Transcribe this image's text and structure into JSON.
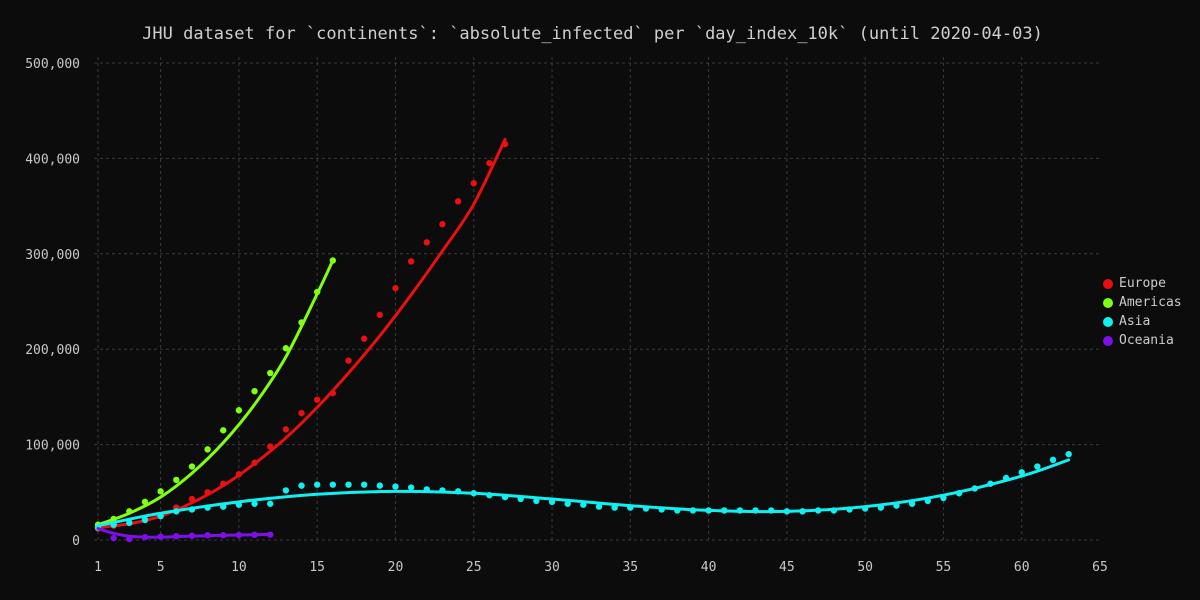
{
  "chart_data": {
    "type": "line",
    "title": "JHU dataset for `continents`: `absolute_infected` per `day_index_10k` (until 2020-04-03)",
    "xlabel": "",
    "ylabel": "",
    "xlim": [
      1,
      65
    ],
    "ylim": [
      0,
      500000
    ],
    "xticks": [
      1,
      5,
      10,
      15,
      20,
      25,
      30,
      35,
      40,
      45,
      50,
      55,
      60,
      65
    ],
    "xtick_labels": [
      "1",
      "5",
      "10",
      "15",
      "20",
      "25",
      "30",
      "35",
      "40",
      "45",
      "50",
      "55",
      "60",
      "65"
    ],
    "yticks": [
      0,
      100000,
      200000,
      300000,
      400000,
      500000
    ],
    "ytick_labels": [
      "0",
      "100,000",
      "200,000",
      "300,000",
      "400,000",
      "500,000"
    ],
    "grid": true,
    "legend_position": "right",
    "series": [
      {
        "name": "Europe",
        "color": "#e81010",
        "x": [
          1,
          2,
          3,
          4,
          5,
          6,
          7,
          8,
          9,
          10,
          11,
          12,
          13,
          14,
          15,
          16,
          17,
          18,
          19,
          20,
          21,
          22,
          23,
          24,
          25,
          26,
          27
        ],
        "values": [
          12000,
          15000,
          19000,
          22000,
          25000,
          34000,
          43000,
          50000,
          59000,
          69000,
          81000,
          98000,
          116000,
          133000,
          147000,
          154000,
          188000,
          211000,
          236000,
          264000,
          292000,
          312000,
          331000,
          355000,
          374000,
          395000,
          415000
        ],
        "fit": [
          [
            1,
            13000
          ],
          [
            3,
            17000
          ],
          [
            5,
            25000
          ],
          [
            7,
            39000
          ],
          [
            9,
            57000
          ],
          [
            11,
            80000
          ],
          [
            13,
            107000
          ],
          [
            15,
            139000
          ],
          [
            17,
            175000
          ],
          [
            19,
            214000
          ],
          [
            21,
            257000
          ],
          [
            23,
            303000
          ],
          [
            25,
            352000
          ],
          [
            27,
            420000
          ]
        ]
      },
      {
        "name": "Americas",
        "color": "#80ff10",
        "x": [
          1,
          2,
          3,
          4,
          5,
          6,
          7,
          8,
          9,
          10,
          11,
          12,
          13,
          14,
          15,
          16
        ],
        "values": [
          16000,
          22000,
          30000,
          40000,
          51000,
          63000,
          77000,
          95000,
          115000,
          136000,
          156000,
          175000,
          201000,
          228000,
          260000,
          293000
        ],
        "fit": [
          [
            1,
            16000
          ],
          [
            3,
            28000
          ],
          [
            5,
            45000
          ],
          [
            7,
            70000
          ],
          [
            9,
            102000
          ],
          [
            11,
            142000
          ],
          [
            13,
            192000
          ],
          [
            15,
            258000
          ],
          [
            16,
            293000
          ]
        ]
      },
      {
        "name": "Asia",
        "color": "#10f0f0",
        "x": [
          1,
          2,
          3,
          4,
          5,
          6,
          7,
          8,
          9,
          10,
          11,
          12,
          13,
          14,
          15,
          16,
          17,
          18,
          19,
          20,
          21,
          22,
          23,
          24,
          25,
          26,
          27,
          28,
          29,
          30,
          31,
          32,
          33,
          34,
          35,
          36,
          37,
          38,
          39,
          40,
          41,
          42,
          43,
          44,
          45,
          46,
          47,
          48,
          49,
          50,
          51,
          52,
          53,
          54,
          55,
          56,
          57,
          58,
          59,
          60,
          61,
          62,
          63
        ],
        "values": [
          13000,
          16000,
          18000,
          21000,
          25000,
          30000,
          32000,
          34000,
          35000,
          37000,
          38000,
          38000,
          52000,
          57000,
          58000,
          58000,
          58000,
          58000,
          57000,
          56000,
          55000,
          53000,
          52000,
          51000,
          49000,
          47000,
          45000,
          43000,
          41000,
          40000,
          38000,
          37000,
          35000,
          34000,
          34000,
          33000,
          32000,
          31000,
          31000,
          31000,
          31000,
          31000,
          31000,
          31000,
          30000,
          30000,
          31000,
          31000,
          32000,
          33000,
          34000,
          36000,
          38000,
          41000,
          44000,
          49000,
          54000,
          59000,
          65000,
          71000,
          77000,
          84000,
          90000
        ],
        "fit": [
          [
            1,
            15000
          ],
          [
            5,
            28000
          ],
          [
            10,
            40000
          ],
          [
            15,
            48000
          ],
          [
            20,
            51000
          ],
          [
            25,
            49000
          ],
          [
            30,
            43000
          ],
          [
            35,
            36000
          ],
          [
            40,
            31000
          ],
          [
            45,
            30000
          ],
          [
            50,
            35000
          ],
          [
            55,
            47000
          ],
          [
            60,
            67000
          ],
          [
            63,
            84000
          ]
        ]
      },
      {
        "name": "Oceania",
        "color": "#7c10e8",
        "x": [
          2,
          3,
          4,
          5,
          6,
          7,
          8,
          9,
          10,
          11,
          12
        ],
        "values": [
          2000,
          1000,
          3000,
          3500,
          4000,
          4500,
          5000,
          5000,
          5200,
          5400,
          5600
        ],
        "fit": [
          [
            1,
            12000
          ],
          [
            2,
            7000
          ],
          [
            3,
            4000
          ],
          [
            4,
            3000
          ],
          [
            5,
            3000
          ],
          [
            6,
            3500
          ],
          [
            7,
            4000
          ],
          [
            8,
            4500
          ],
          [
            9,
            5000
          ],
          [
            10,
            5200
          ],
          [
            11,
            5500
          ],
          [
            12,
            6000
          ]
        ]
      }
    ]
  }
}
